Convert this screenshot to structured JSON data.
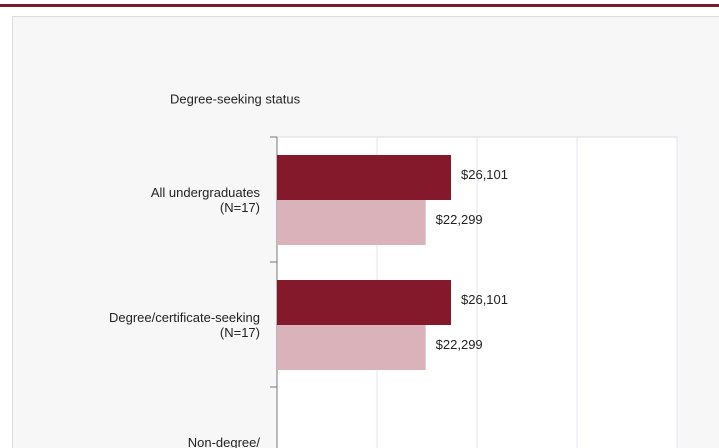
{
  "chart_data": {
    "type": "hbar",
    "title": "Degree-seeking status",
    "categories": [
      "All undergraduates\n(N=17)",
      "Degree/certificate-seeking\n(N=17)",
      "Non-degree/\nnon-certificate-seeking"
    ],
    "series": [
      {
        "color": "#84192c",
        "values": [
          26101,
          26101,
          null
        ],
        "value_labels": [
          "$26,101",
          "$26,101",
          null
        ]
      },
      {
        "color": "#d9b3b9",
        "values": [
          22299,
          22299,
          null
        ],
        "value_labels": [
          "$22,299",
          "$22,299",
          null
        ]
      }
    ],
    "xlim": [
      0,
      60000
    ],
    "xticks": [
      0,
      15000,
      30000,
      45000,
      60000
    ],
    "grid": true
  }
}
